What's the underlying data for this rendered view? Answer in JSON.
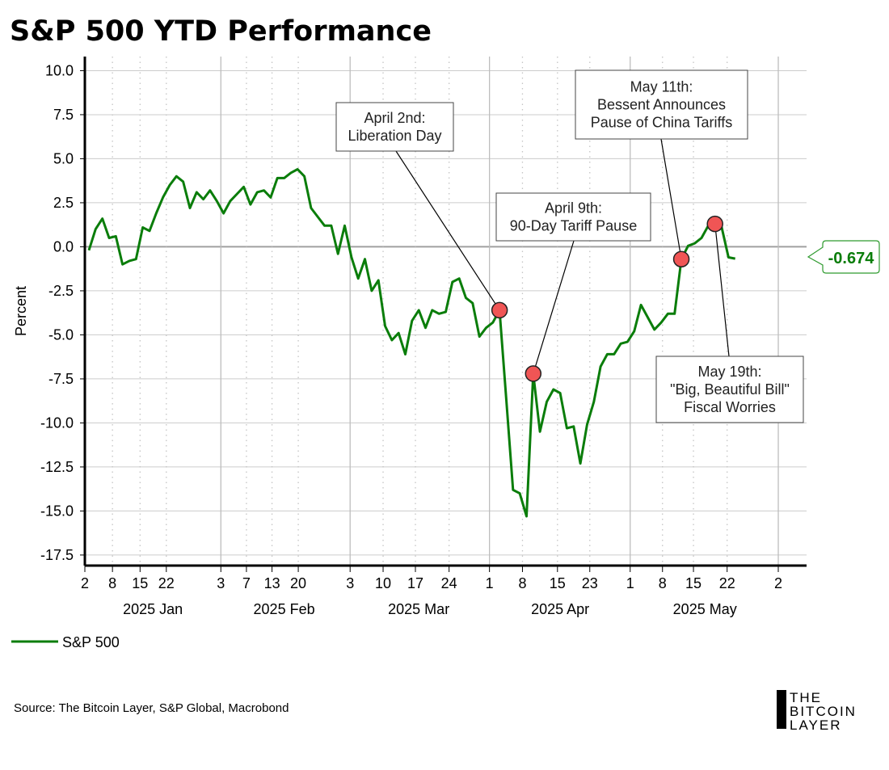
{
  "title": "S&P 500 YTD Performance",
  "source": "Source: The Bitcoin Layer, S&P Global, Macrobond",
  "logo": [
    "THE",
    "BITCOIN",
    "LAYER"
  ],
  "colors": {
    "line": "#0a7d0a",
    "marker": "#f05555",
    "grid": "#cccccc",
    "zero": "#a0a0a0"
  },
  "chart_data": {
    "type": "line",
    "title": "S&P 500 YTD Performance",
    "ylabel": "Percent",
    "xlabel": "",
    "ylim": [
      -18.1,
      10.8
    ],
    "xlim": [
      -0.6,
      106.6
    ],
    "yticks": [
      10.0,
      7.5,
      5.0,
      2.5,
      0.0,
      -2.5,
      -5.0,
      -7.5,
      -10.0,
      -12.5,
      -15.0,
      -17.5
    ],
    "ytick_labels": [
      "10.0",
      "7.5",
      "5.0",
      "2.5",
      "0.0",
      "-2.5",
      "-5.0",
      "-7.5",
      "-10.0",
      "-12.5",
      "-15.0",
      "-17.5"
    ],
    "xticks": [
      {
        "pos": -0.6,
        "label": "2",
        "major": true
      },
      {
        "pos": 3.5,
        "label": "8",
        "major": false
      },
      {
        "pos": 7.6,
        "label": "15",
        "major": false
      },
      {
        "pos": 11.5,
        "label": "22",
        "major": false
      },
      {
        "pos": 19.6,
        "label": "3",
        "major": true
      },
      {
        "pos": 23.4,
        "label": "7",
        "major": false
      },
      {
        "pos": 27.2,
        "label": "13",
        "major": false
      },
      {
        "pos": 31.1,
        "label": "20",
        "major": false
      },
      {
        "pos": 38.8,
        "label": "3",
        "major": true
      },
      {
        "pos": 43.7,
        "label": "10",
        "major": false
      },
      {
        "pos": 48.5,
        "label": "17",
        "major": false
      },
      {
        "pos": 53.5,
        "label": "24",
        "major": false
      },
      {
        "pos": 59.5,
        "label": "1",
        "major": true
      },
      {
        "pos": 64.4,
        "label": "8",
        "major": false
      },
      {
        "pos": 69.6,
        "label": "15",
        "major": false
      },
      {
        "pos": 74.4,
        "label": "23",
        "major": false
      },
      {
        "pos": 80.4,
        "label": "1",
        "major": true
      },
      {
        "pos": 85.2,
        "label": "8",
        "major": false
      },
      {
        "pos": 89.8,
        "label": "15",
        "major": false
      },
      {
        "pos": 94.8,
        "label": "22",
        "major": false
      },
      {
        "pos": 102.4,
        "label": "2",
        "major": true
      }
    ],
    "month_labels": [
      {
        "pos": 9.5,
        "label": "2025 Jan"
      },
      {
        "pos": 29.0,
        "label": "2025 Feb"
      },
      {
        "pos": 49.0,
        "label": "2025 Mar"
      },
      {
        "pos": 70.0,
        "label": "2025 Apr"
      },
      {
        "pos": 91.5,
        "label": "2025 May"
      }
    ],
    "legend": {
      "placement": "bottom-left",
      "entries": [
        "S&P 500"
      ]
    },
    "series": [
      {
        "name": "S&P 500",
        "values": [
          -0.2,
          1.0,
          1.6,
          0.5,
          0.6,
          -1.0,
          -0.8,
          -0.7,
          1.1,
          0.9,
          1.9,
          2.8,
          3.5,
          4.0,
          3.7,
          2.2,
          3.1,
          2.7,
          3.2,
          2.6,
          1.9,
          2.6,
          3.0,
          3.4,
          2.4,
          3.1,
          3.2,
          2.8,
          3.9,
          3.9,
          4.2,
          4.4,
          4.0,
          2.2,
          1.7,
          1.2,
          1.2,
          -0.4,
          1.2,
          -0.6,
          -1.8,
          -0.7,
          -2.5,
          -1.9,
          -4.5,
          -5.3,
          -4.9,
          -6.1,
          -4.2,
          -3.6,
          -4.6,
          -3.6,
          -3.8,
          -3.7,
          -2.0,
          -1.8,
          -2.9,
          -3.2,
          -5.1,
          -4.6,
          -4.3,
          -3.6,
          -8.7,
          -13.8,
          -14.0,
          -15.3,
          -7.2,
          -10.5,
          -8.8,
          -8.1,
          -8.3,
          -10.3,
          -10.2,
          -12.3,
          -10.1,
          -8.8,
          -6.8,
          -6.1,
          -6.1,
          -5.5,
          -5.4,
          -4.8,
          -3.3,
          -4.0,
          -4.7,
          -4.3,
          -3.8,
          -3.8,
          -0.7,
          0.05,
          0.2,
          0.5,
          1.2,
          1.3,
          1.1,
          -0.6,
          -0.674
        ]
      }
    ],
    "last_value_label": "-0.674",
    "annotations": [
      {
        "index": 61,
        "lines": [
          "April 2nd:",
          "Liberation Day"
        ]
      },
      {
        "index": 66,
        "lines": [
          "April 9th:",
          "90-Day Tariff Pause"
        ]
      },
      {
        "index": 88,
        "lines": [
          "May 11th:",
          "Bessent Announces",
          "Pause of China Tariffs"
        ]
      },
      {
        "index": 93,
        "lines": [
          "May 19th:",
          "\"Big, Beautiful Bill\"",
          "Fiscal Worries"
        ]
      }
    ]
  }
}
